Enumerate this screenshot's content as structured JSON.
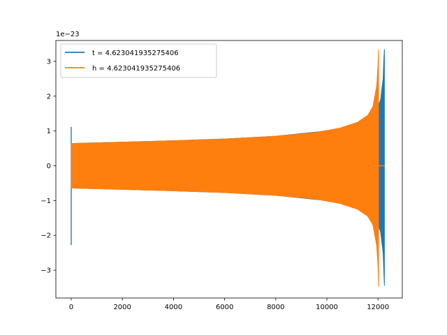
{
  "chart_data": {
    "type": "line",
    "title": "",
    "xlabel": "",
    "ylabel": "",
    "y_offset_label": "1e−23",
    "xlim": [
      -600,
      12950
    ],
    "ylim": [
      -3.8,
      3.6
    ],
    "x_ticks": [
      0,
      2000,
      4000,
      6000,
      8000,
      10000,
      12000
    ],
    "x_tick_labels": [
      "0",
      "2000",
      "4000",
      "6000",
      "8000",
      "10000",
      "12000"
    ],
    "y_ticks": [
      -3,
      -2,
      -1,
      0,
      1,
      2,
      3
    ],
    "y_tick_labels": [
      "−3",
      "−2",
      "−1",
      "0",
      "1",
      "2",
      "3"
    ],
    "grid": false,
    "legend_position": "upper-left",
    "series": [
      {
        "name": "t = 4.623041935275406",
        "color": "#1f77b4",
        "pre_gap_start": -5,
        "pre_gap_end": 5,
        "pre_gap_min": -2.28,
        "pre_gap_max": 1.12,
        "envelope": {
          "x": [
            5,
            1000,
            2000,
            4000,
            6000,
            8000,
            10000,
            11000,
            11500,
            11800,
            12000,
            12100,
            12200,
            12230,
            12250
          ],
          "upper": [
            0.64,
            0.66,
            0.68,
            0.72,
            0.77,
            0.85,
            1.0,
            1.15,
            1.3,
            1.5,
            1.7,
            1.9,
            2.5,
            3.1,
            3.35
          ],
          "lower": [
            -0.64,
            -0.66,
            -0.68,
            -0.72,
            -0.77,
            -0.85,
            -1.0,
            -1.15,
            -1.3,
            -1.5,
            -1.7,
            -1.9,
            -2.5,
            -3.1,
            -3.45
          ]
        },
        "post_flat_start": 12260,
        "post_flat_end": 12270
      },
      {
        "name": "h = 4.623041935275406",
        "color": "#ff7f0e",
        "envelope": {
          "x": [
            0,
            1000,
            2000,
            4000,
            6000,
            8000,
            9500,
            10500,
            11200,
            11600,
            11800,
            11950,
            12000,
            12020
          ],
          "upper": [
            0.64,
            0.66,
            0.68,
            0.72,
            0.77,
            0.85,
            0.95,
            1.08,
            1.25,
            1.45,
            1.7,
            2.3,
            2.9,
            3.33
          ],
          "lower": [
            -0.64,
            -0.66,
            -0.68,
            -0.72,
            -0.77,
            -0.85,
            -0.95,
            -1.08,
            -1.25,
            -1.45,
            -1.7,
            -2.3,
            -2.9,
            -3.47
          ]
        },
        "post_flat_start": 12030,
        "post_flat_end": 12260
      }
    ]
  }
}
